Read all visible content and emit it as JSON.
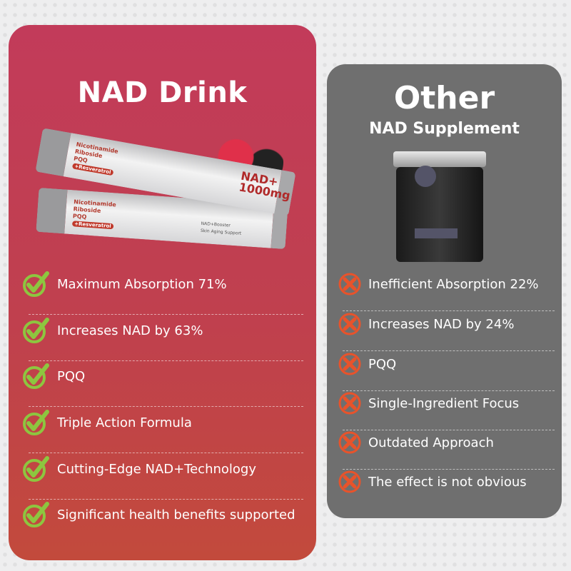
{
  "left": {
    "title": "NAD Drink",
    "product": {
      "ingredients": [
        "Nicotinamide",
        "Riboside",
        "PQQ"
      ],
      "tag": "+Resveratrol",
      "badge": "NAD+",
      "dose": "1000mg",
      "subtitle": "NAD+Booster",
      "subtitle2": "Skin Aging Support"
    },
    "items": [
      "Maximum Absorption 71%",
      "Increases NAD by 63%",
      "PQQ",
      "Triple Action Formula",
      "Cutting-Edge NAD+Technology",
      "Significant health benefits supported"
    ],
    "icon": "check-circle-icon",
    "icon_color": "#8dc63f"
  },
  "right": {
    "title": "Other",
    "subtitle": "NAD Supplement",
    "items": [
      "Inefficient Absorption 22%",
      "Increases NAD by 24%",
      "PQQ",
      "Single-Ingredient Focus",
      "Outdated Approach",
      "The effect is not obvious"
    ],
    "icon": "x-circle-icon",
    "icon_color": "#e8532b"
  },
  "colors": {
    "left_card": "#c23b5a",
    "right_card": "#6f6f6f"
  }
}
